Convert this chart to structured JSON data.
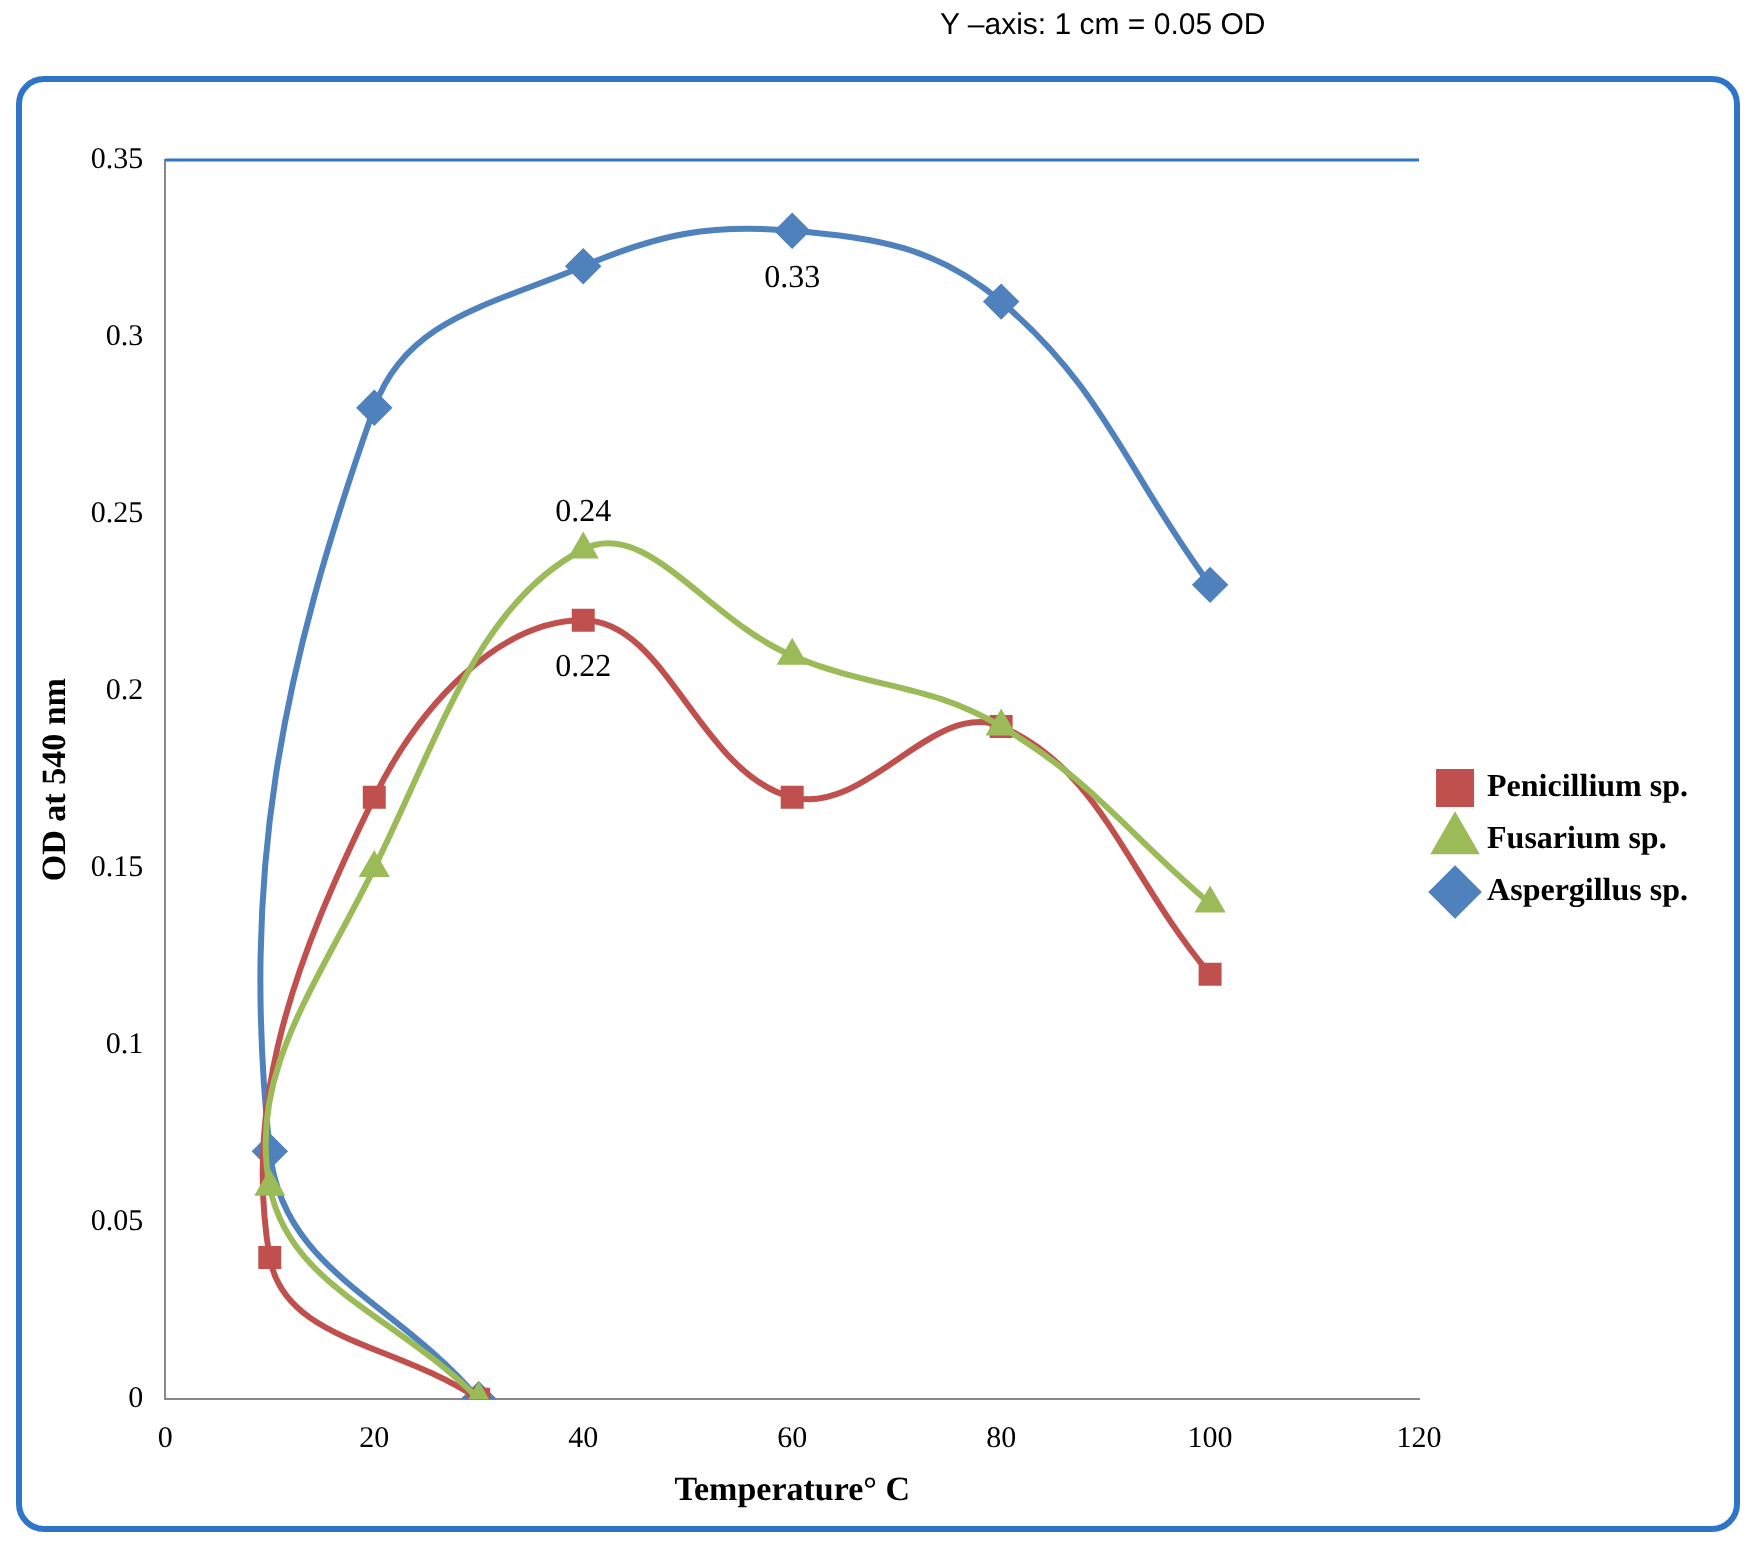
{
  "chart_data": {
    "type": "line",
    "xlabel": "Temperature° C",
    "ylabel": "OD at 540 nm",
    "xlim": [
      0,
      120
    ],
    "xticks": [
      0,
      20,
      40,
      60,
      80,
      100,
      120
    ],
    "ylim": [
      0,
      0.35
    ],
    "yticks": [
      0,
      0.05,
      0.1,
      0.15,
      0.2,
      0.25,
      0.3,
      0.35
    ],
    "grid": false,
    "legend": "right",
    "line_style": "solid",
    "series": [
      {
        "name": "Penicillium sp.",
        "color": "#c0504d",
        "marker": "square",
        "x": [
          30,
          10,
          20,
          40,
          60,
          80,
          100
        ],
        "values": [
          0,
          0.04,
          0.17,
          0.22,
          0.17,
          0.19,
          0.12
        ],
        "value_labels": [
          null,
          null,
          null,
          "0.22",
          null,
          null,
          null
        ]
      },
      {
        "name": "Fusarium sp.",
        "color": "#9bbb59",
        "marker": "triangle",
        "x": [
          30,
          10,
          20,
          40,
          60,
          80,
          100
        ],
        "values": [
          0,
          0.06,
          0.15,
          0.24,
          0.21,
          0.19,
          0.14
        ],
        "value_labels": [
          null,
          null,
          null,
          "0.24",
          null,
          null,
          null
        ]
      },
      {
        "name": "Aspergillus sp.",
        "color": "#4f81bd",
        "marker": "diamond",
        "x": [
          30,
          10,
          20,
          40,
          60,
          80,
          100
        ],
        "values": [
          0,
          0.07,
          0.28,
          0.32,
          0.33,
          0.31,
          0.23
        ],
        "value_labels": [
          null,
          null,
          null,
          null,
          "0.33",
          null,
          null
        ]
      }
    ],
    "annotations": [
      "Y –axis: 1 cm = 0.05 OD"
    ]
  }
}
